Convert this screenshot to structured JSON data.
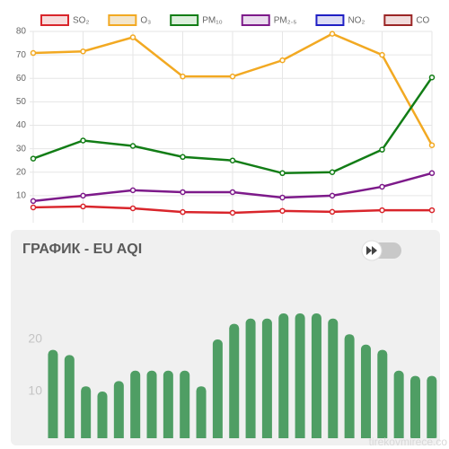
{
  "chart_data": [
    {
      "type": "line",
      "categories": [
        null,
        null,
        null,
        null,
        null,
        null,
        null,
        null,
        null
      ],
      "series": [
        {
          "name": "SO₂",
          "color": "#d9252b",
          "fill": "#f7dcdc",
          "values": [
            5,
            5.4,
            4.6,
            3,
            2.7,
            3.5,
            3.1,
            3.8,
            3.8
          ]
        },
        {
          "name": "O₃",
          "color": "#f2a922",
          "fill": "#f3e6cc",
          "values": [
            70.8,
            71.5,
            77.5,
            60.8,
            60.8,
            67.7,
            79,
            70,
            31.5
          ]
        },
        {
          "name": "PM₁₀",
          "color": "#127d16",
          "fill": "#dcefdc",
          "values": [
            25.8,
            33.5,
            31.2,
            26.5,
            25,
            19.6,
            20,
            29.6,
            60.4
          ]
        },
        {
          "name": "PM₂.₅",
          "color": "#7d1a8a",
          "fill": "#eadcee",
          "values": [
            7.7,
            10,
            12.3,
            11.5,
            11.5,
            9.2,
            10,
            13.8,
            19.6
          ]
        },
        {
          "name": "NO₂",
          "color": "#1f1fc4",
          "fill": "#dcdcf4",
          "values": [
            null,
            null,
            null,
            null,
            null,
            null,
            null,
            null,
            null
          ]
        },
        {
          "name": "CO",
          "color": "#9b2626",
          "fill": "#f1dcdc",
          "values": [
            null,
            null,
            null,
            null,
            null,
            null,
            null,
            null,
            null
          ]
        }
      ],
      "ylim": [
        0,
        80
      ],
      "yticks": [
        10,
        20,
        30,
        40,
        50,
        60,
        70,
        80
      ],
      "grid": true
    },
    {
      "type": "bar",
      "title": "ГРАФИК - EU AQI",
      "categories": [
        null,
        null,
        null,
        null,
        null,
        null,
        null,
        null,
        null,
        null,
        null,
        null,
        null,
        null,
        null,
        null,
        null,
        null,
        null,
        null,
        null,
        null,
        null,
        null
      ],
      "values": [
        18,
        17,
        11,
        10,
        12,
        14,
        14,
        14,
        14,
        11,
        20,
        23,
        24,
        24,
        25,
        25,
        25,
        24,
        21,
        19,
        18,
        14,
        13,
        13
      ],
      "color": "#4f9e64",
      "ylim": [
        0,
        35
      ],
      "yticks": [
        10,
        20
      ],
      "grid": false
    }
  ],
  "watermark": "tirekovmirece.co"
}
